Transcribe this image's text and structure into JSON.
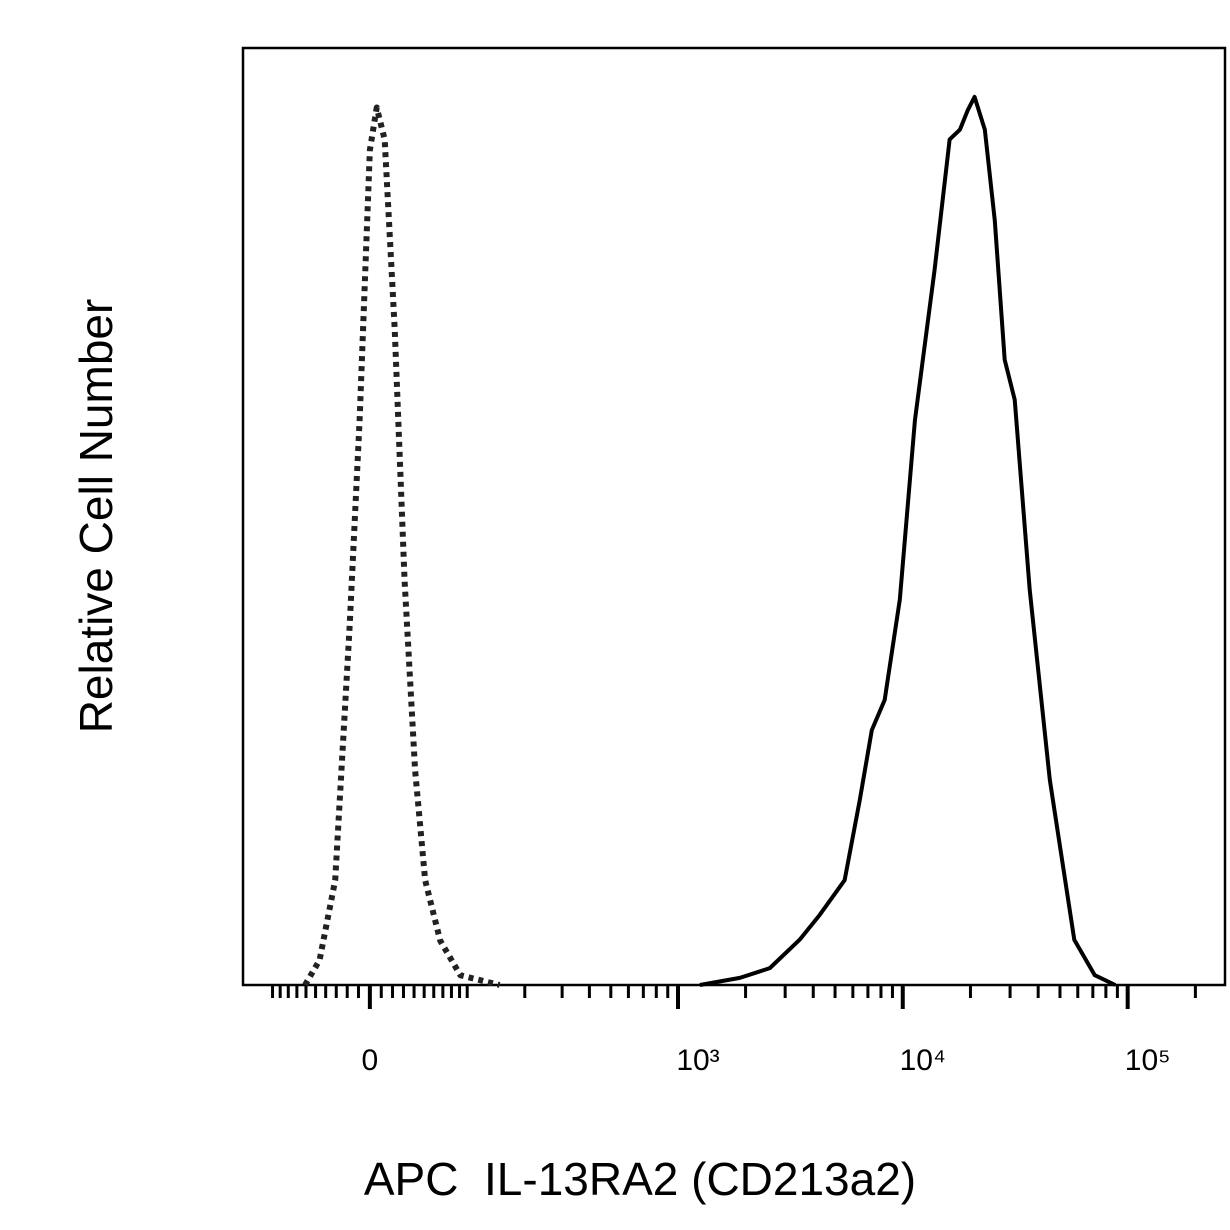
{
  "chart_data": {
    "type": "line",
    "xlabel": "APC  IL-13RA2 (CD213a2)",
    "ylabel": "Relative Cell Number",
    "xscale": "biexponential",
    "xscale_cofactor": 85.5,
    "xlim": [
      -145,
      270800
    ],
    "ylim": [
      0,
      105.5
    ],
    "xticks": [
      0,
      {
        "value": 1000,
        "label": "10³"
      },
      {
        "value": 10000,
        "label": "10⁴"
      },
      {
        "value": 100000,
        "label": "10⁵"
      }
    ],
    "xminorticks": [
      -100,
      -90,
      -80,
      -70,
      -60,
      -50,
      -40,
      -30,
      -20,
      -10,
      10,
      20,
      30,
      40,
      50,
      60,
      70,
      80,
      90,
      100,
      200,
      300,
      400,
      500,
      600,
      700,
      800,
      900,
      2000,
      3000,
      4000,
      5000,
      6000,
      7000,
      8000,
      9000,
      20000,
      30000,
      40000,
      50000,
      60000,
      70000,
      80000,
      90000,
      200000
    ],
    "series": [
      {
        "color": "#222222",
        "dash": "dotted",
        "x": [
          -61,
          -46,
          -31,
          -18,
          -9,
          0,
          6,
          13,
          22,
          31,
          41,
          51,
          67,
          91,
          150
        ],
        "values": [
          0,
          2.8,
          11.8,
          40,
          63.6,
          94,
          98.8,
          95.2,
          73.8,
          45.6,
          24.2,
          11.8,
          5,
          1.1,
          0
        ]
      },
      {
        "color": "#000000",
        "dash": "solid",
        "x": [
          1252,
          1885,
          2564,
          3480,
          4275,
          5515,
          6438,
          7285,
          8311,
          9704,
          11329,
          13850,
          16160,
          17950,
          19460,
          20860,
          23170,
          25650,
          28390,
          31460,
          36680,
          45060,
          57880,
          71390,
          88060
        ],
        "values": [
          0,
          0.8,
          1.9,
          5.1,
          7.9,
          11.8,
          20.8,
          28.7,
          32.1,
          43.4,
          63.6,
          80.5,
          95.2,
          96.3,
          98.5,
          100,
          96.3,
          86.1,
          70.4,
          65.9,
          44.5,
          23.1,
          5.1,
          1.1,
          0
        ]
      }
    ]
  }
}
